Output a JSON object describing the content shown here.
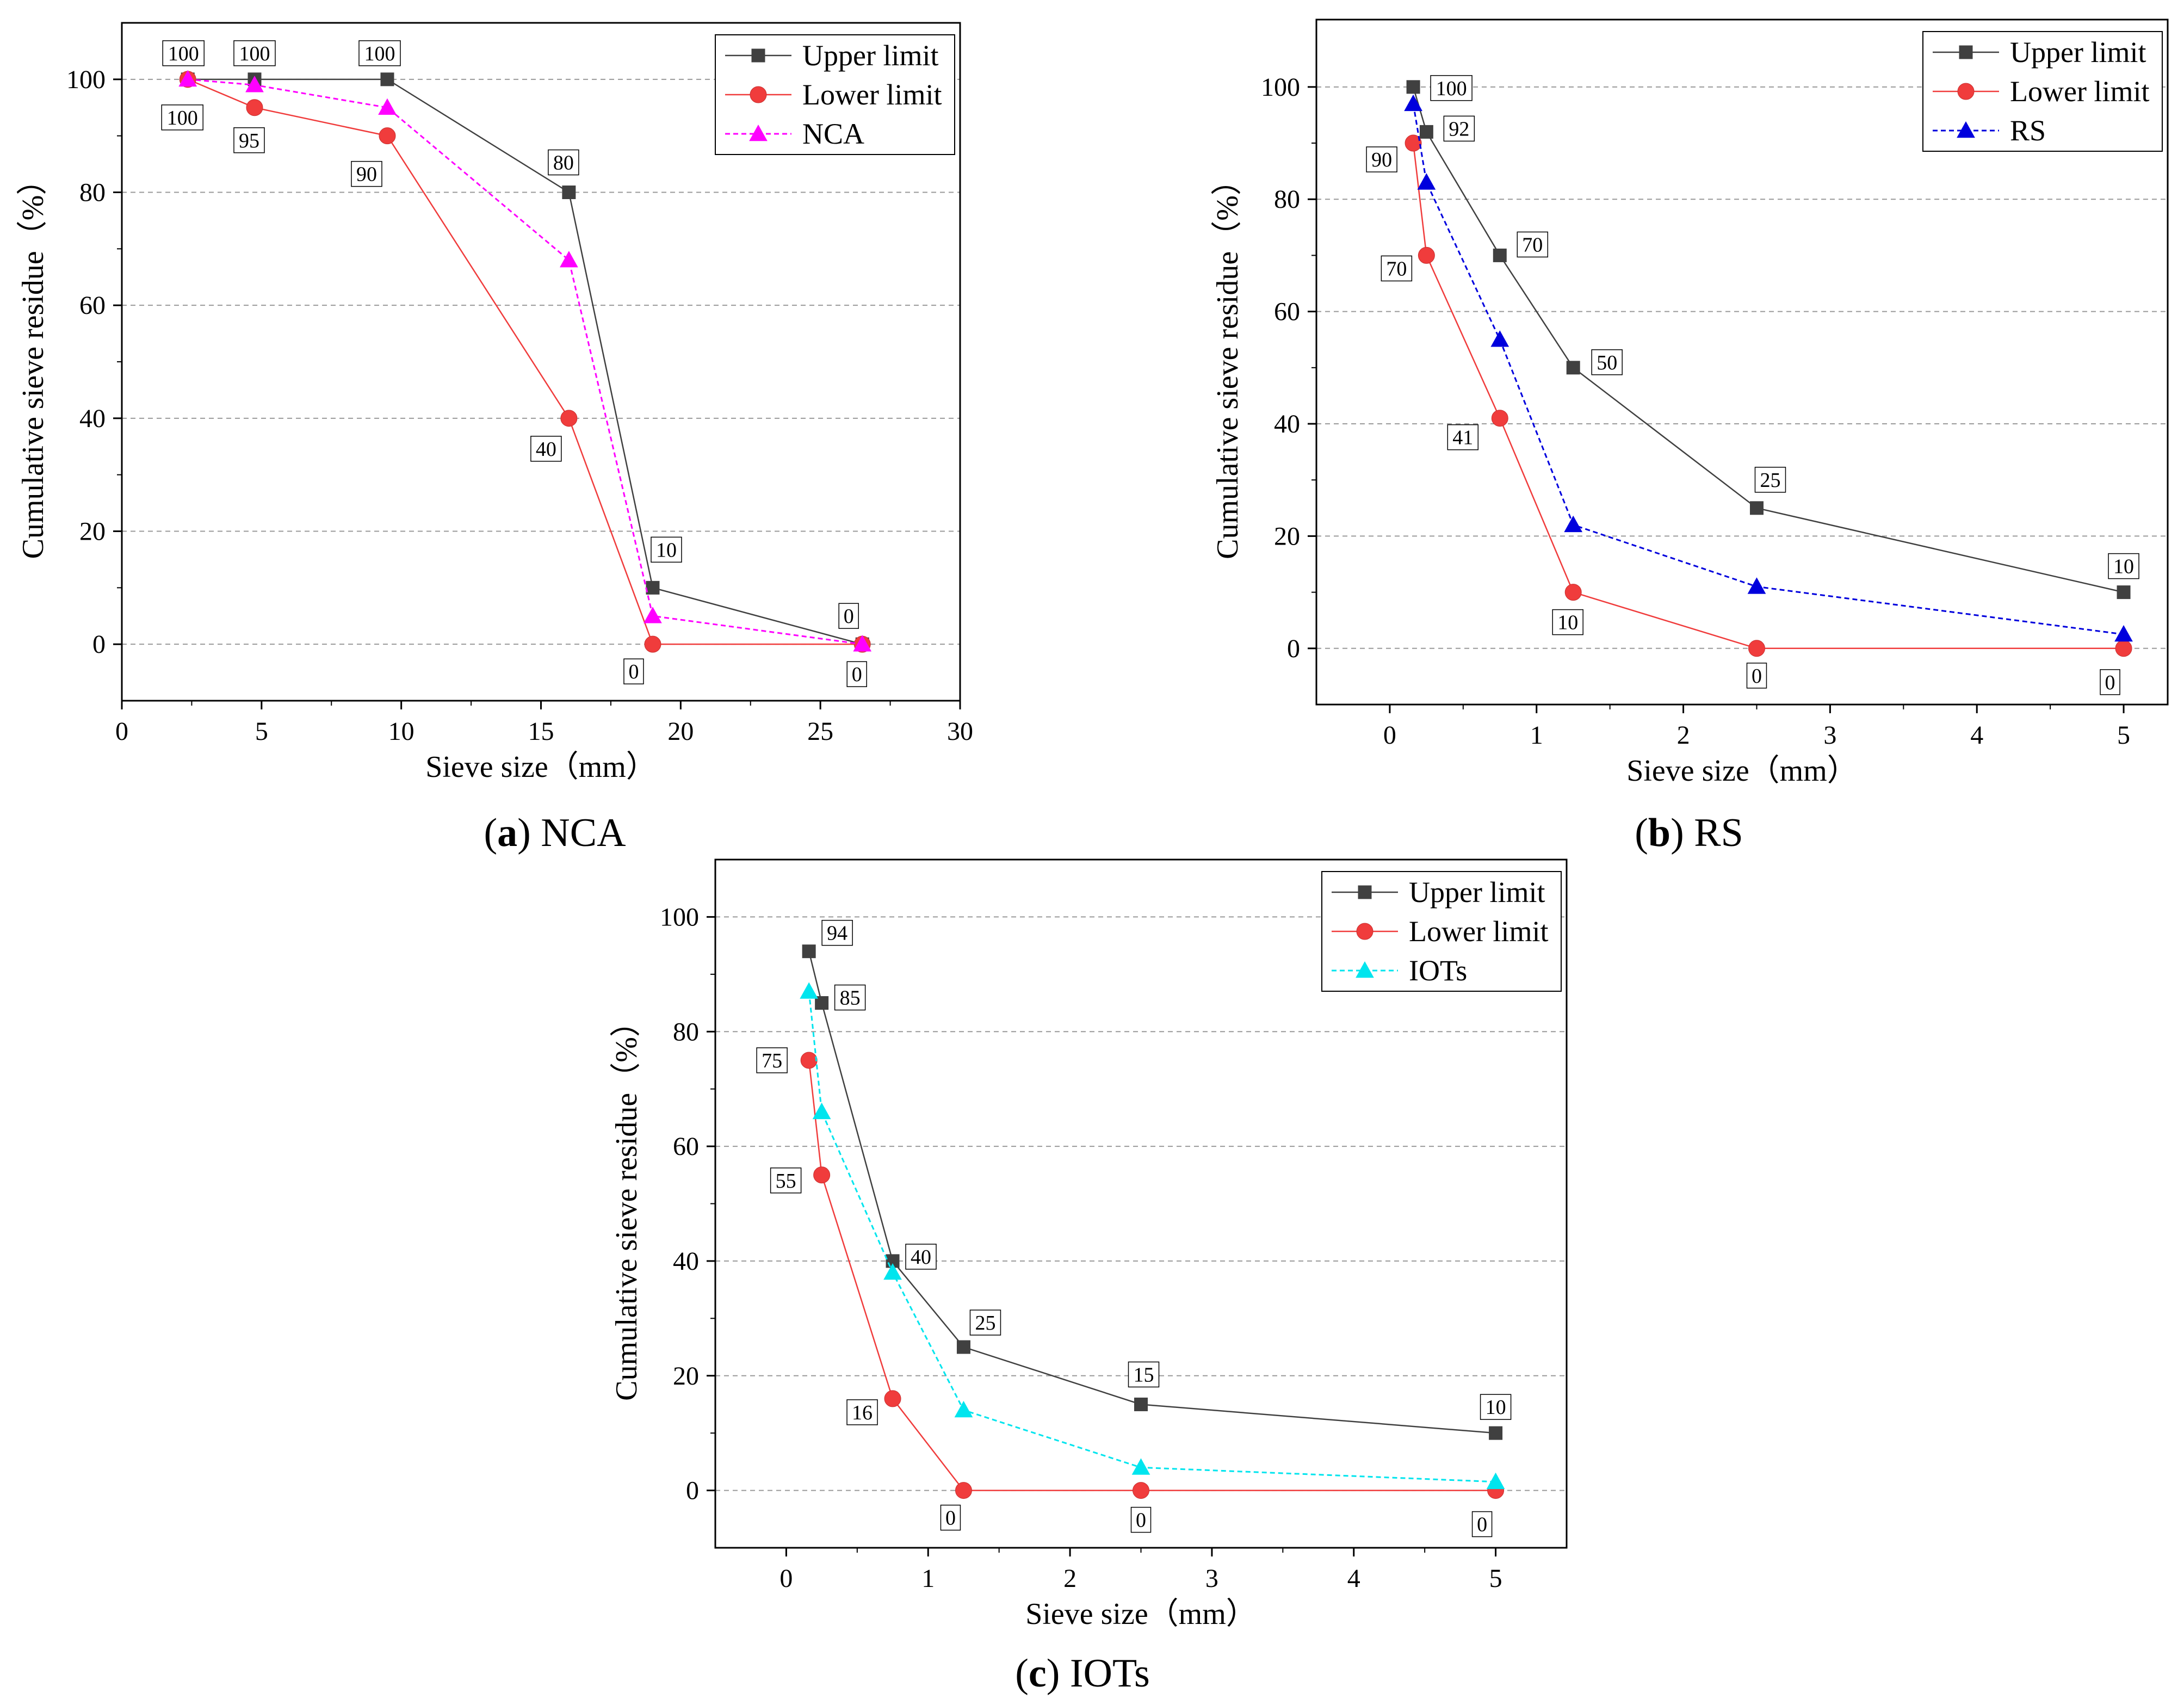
{
  "figure": {
    "captions": [
      {
        "letter": "a",
        "text": "NCA"
      },
      {
        "letter": "b",
        "text": "RS"
      },
      {
        "letter": "c",
        "text": "IOTs"
      }
    ]
  },
  "chart_data": [
    {
      "id": "a",
      "type": "line",
      "title": "",
      "xlabel": "Sieve size（mm）",
      "ylabel": "Cumulative sieve residue（%）",
      "xlim": [
        0,
        30
      ],
      "ylim": [
        -10,
        110
      ],
      "xticks": [
        0,
        5,
        10,
        15,
        20,
        25,
        30
      ],
      "yticks": [
        0,
        20,
        40,
        60,
        80,
        100
      ],
      "grid": "horizontal-dashed",
      "legend_position": "top-right",
      "series": [
        {
          "name": "Upper limit",
          "marker": "square",
          "color": "#404040",
          "dashed": false,
          "x": [
            2.36,
            4.75,
            9.5,
            16,
            19,
            26.5
          ],
          "y": [
            100,
            100,
            100,
            80,
            10,
            0
          ],
          "labels": [
            "100",
            "100",
            "100",
            "80",
            "10",
            "0"
          ]
        },
        {
          "name": "Lower limit",
          "marker": "circle",
          "color": "#f03c3c",
          "dashed": false,
          "x": [
            2.36,
            4.75,
            9.5,
            16,
            19,
            26.5
          ],
          "y": [
            100,
            95,
            90,
            40,
            0,
            0
          ],
          "labels": [
            "100",
            "95",
            "90",
            "40",
            "0",
            "0"
          ]
        },
        {
          "name": "NCA",
          "marker": "triangle",
          "color": "#ff00ff",
          "dashed": true,
          "x": [
            2.36,
            4.75,
            9.5,
            16,
            19,
            26.5
          ],
          "y": [
            100,
            99,
            95,
            68,
            5,
            0
          ],
          "labels": []
        }
      ]
    },
    {
      "id": "b",
      "type": "line",
      "title": "",
      "xlabel": "Sieve size（mm）",
      "ylabel": "Cumulative sieve residue（%）",
      "xlim": [
        -0.5,
        5.3
      ],
      "ylim": [
        -10,
        112
      ],
      "xticks": [
        0,
        1,
        2,
        3,
        4,
        5
      ],
      "yticks": [
        0,
        20,
        40,
        60,
        80,
        100
      ],
      "grid": "horizontal-dashed",
      "legend_position": "top-right",
      "series": [
        {
          "name": "Upper limit",
          "marker": "square",
          "color": "#404040",
          "dashed": false,
          "x": [
            0.16,
            0.25,
            0.75,
            1.25,
            2.5,
            5
          ],
          "y": [
            100,
            92,
            70,
            50,
            25,
            10
          ],
          "labels": [
            "100",
            "92",
            "70",
            "50",
            "25",
            "10"
          ]
        },
        {
          "name": "Lower limit",
          "marker": "circle",
          "color": "#f03c3c",
          "dashed": false,
          "x": [
            0.16,
            0.25,
            0.75,
            1.25,
            2.5,
            5
          ],
          "y": [
            90,
            70,
            41,
            10,
            0,
            0
          ],
          "labels": [
            "90",
            "70",
            "41",
            "10",
            "0",
            "0"
          ]
        },
        {
          "name": "RS",
          "marker": "triangle",
          "color": "#0000dd",
          "dashed": true,
          "x": [
            0.16,
            0.25,
            0.75,
            1.25,
            2.5,
            5
          ],
          "y": [
            97,
            83,
            55,
            22,
            11,
            2.5
          ],
          "labels": []
        }
      ]
    },
    {
      "id": "c",
      "type": "line",
      "title": "",
      "xlabel": "Sieve size（mm）",
      "ylabel": "Cumulative sieve residue（%）",
      "xlim": [
        -0.5,
        5.5
      ],
      "ylim": [
        -10,
        110
      ],
      "xticks": [
        0,
        1,
        2,
        3,
        4,
        5
      ],
      "yticks": [
        0,
        20,
        40,
        60,
        80,
        100
      ],
      "grid": "horizontal-dashed",
      "legend_position": "top-right",
      "series": [
        {
          "name": "Upper limit",
          "marker": "square",
          "color": "#404040",
          "dashed": false,
          "x": [
            0.16,
            0.25,
            0.75,
            1.25,
            2.5,
            5
          ],
          "y": [
            94,
            85,
            40,
            25,
            15,
            10
          ],
          "labels": [
            "94",
            "85",
            "40",
            "25",
            "15",
            "10"
          ]
        },
        {
          "name": "Lower limit",
          "marker": "circle",
          "color": "#f03c3c",
          "dashed": false,
          "x": [
            0.16,
            0.25,
            0.75,
            1.25,
            2.5,
            5
          ],
          "y": [
            75,
            55,
            16,
            0,
            0,
            0
          ],
          "labels": [
            "75",
            "55",
            "16",
            "0",
            "0",
            "0"
          ]
        },
        {
          "name": "IOTs",
          "marker": "triangle",
          "color": "#00e5ee",
          "dashed": true,
          "x": [
            0.16,
            0.25,
            0.75,
            1.25,
            2.5,
            5
          ],
          "y": [
            87,
            66,
            38,
            14,
            4,
            1.5
          ],
          "labels": []
        }
      ]
    }
  ]
}
